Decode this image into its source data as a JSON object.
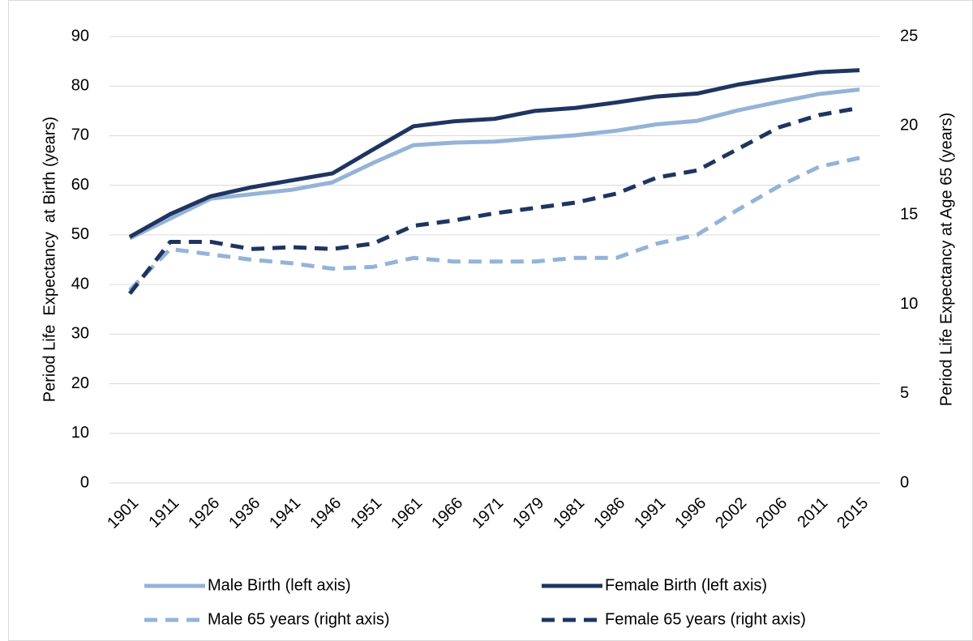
{
  "chart_data": {
    "type": "line",
    "y_label": "Period Life  Expectancy  at Birth (years)",
    "y2_label": "Period Life Expectancy at Age 65 (years)",
    "categories": [
      "1901",
      "1911",
      "1926",
      "1936",
      "1941",
      "1946",
      "1951",
      "1961",
      "1966",
      "1971",
      "1979",
      "1981",
      "1986",
      "1991",
      "1996",
      "2002",
      "2006",
      "2011",
      "2015"
    ],
    "series": [
      {
        "name": "Male Birth (left axis)",
        "color": "#95b3d7",
        "dash": false,
        "values": [
          49.3,
          53.3,
          57.3,
          58.2,
          59.1,
          60.6,
          64.5,
          68.1,
          68.6,
          68.8,
          69.5,
          70.1,
          71.0,
          72.3,
          73.0,
          75.1,
          76.8,
          78.4,
          79.3
        ]
      },
      {
        "name": "Female Birth (left axis)",
        "color": "#1f3560",
        "dash": false,
        "values": [
          49.6,
          54.2,
          57.8,
          59.6,
          61.0,
          62.4,
          67.2,
          71.9,
          72.9,
          73.4,
          75.0,
          75.6,
          76.7,
          77.9,
          78.5,
          80.3,
          81.6,
          82.8,
          83.2
        ]
      },
      {
        "name": "Male 65 years (right axis)",
        "color": "#95b3d7",
        "dash": true,
        "axis": "y2",
        "values": [
          10.8,
          13.1,
          12.8,
          12.5,
          12.3,
          12.0,
          12.1,
          12.6,
          12.4,
          12.4,
          12.4,
          12.6,
          12.6,
          13.4,
          13.9,
          15.3,
          16.6,
          17.7,
          18.2
        ]
      },
      {
        "name": "Female 65 years (right axis)",
        "color": "#1f3560",
        "dash": true,
        "axis": "y2",
        "values": [
          10.6,
          13.5,
          13.5,
          13.1,
          13.2,
          13.1,
          13.4,
          14.4,
          14.7,
          15.1,
          15.4,
          15.7,
          16.2,
          17.1,
          17.5,
          18.7,
          19.9,
          20.6,
          21.0
        ]
      }
    ],
    "ylim": [
      0,
      90
    ],
    "yticks": [
      0,
      10,
      20,
      30,
      40,
      50,
      60,
      70,
      80,
      90
    ],
    "y2lim": [
      0,
      25
    ],
    "y2ticks": [
      0,
      5,
      10,
      15,
      20,
      25
    ],
    "grid": true
  }
}
